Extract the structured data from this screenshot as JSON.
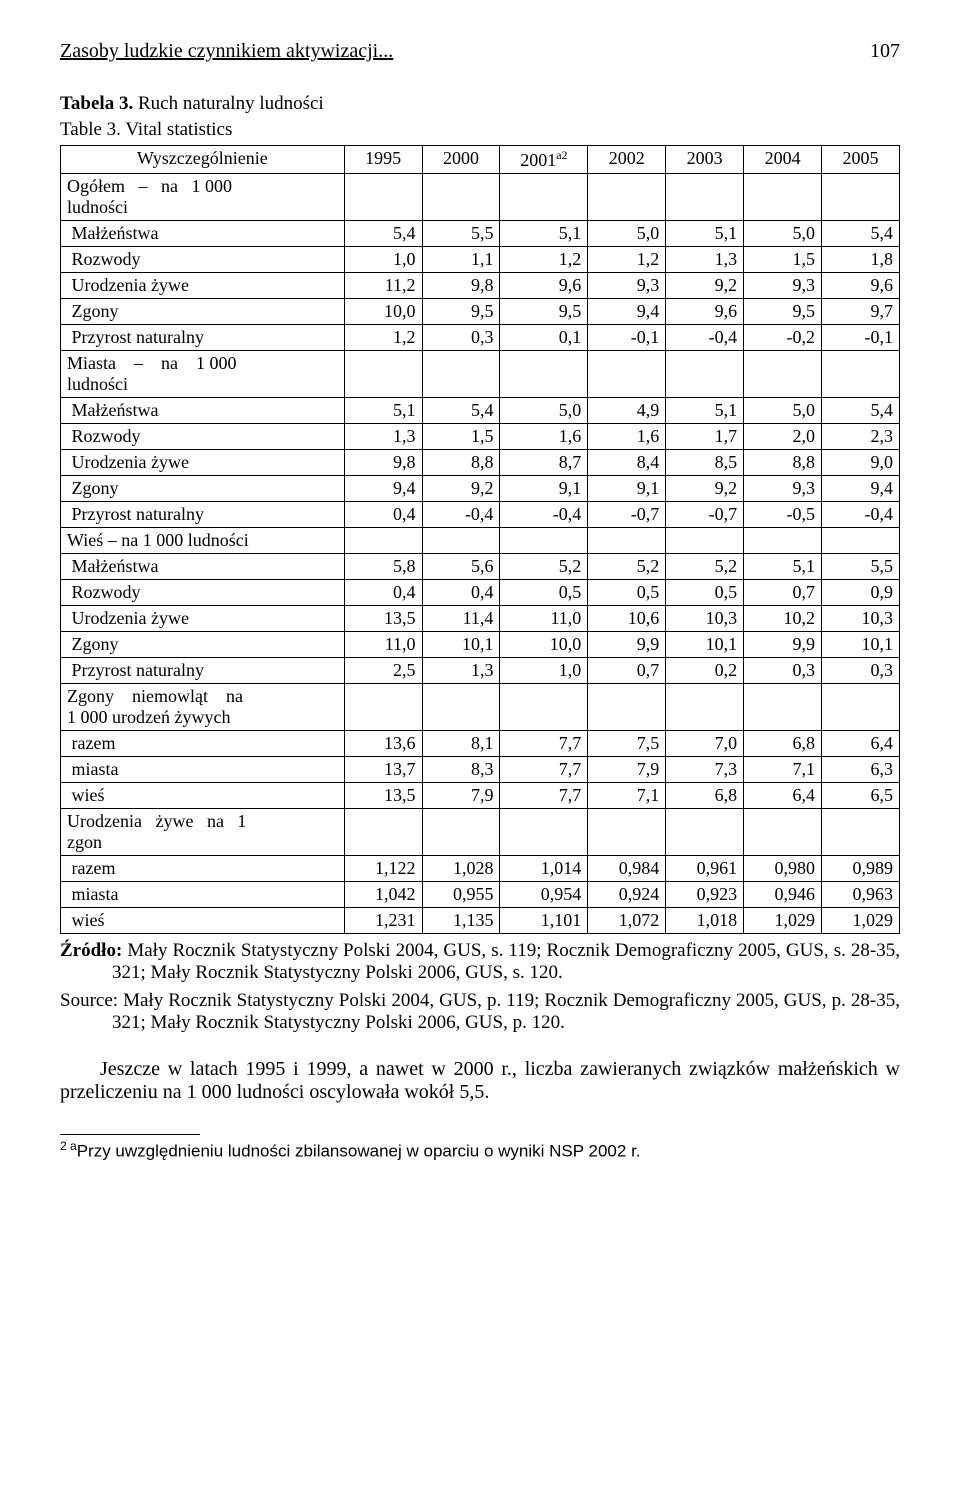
{
  "header": {
    "title": "Zasoby ludzkie czynnikiem aktywizacji...",
    "page": "107"
  },
  "caption": {
    "line1_bold": "Tabela 3.",
    "line1_rest": " Ruch naturalny ludności",
    "line2": "Table 3. Vital statistics"
  },
  "table": {
    "col_header": "Wyszczególnienie",
    "years": [
      "1995",
      "2000",
      "2001",
      "2002",
      "2003",
      "2004",
      "2005"
    ],
    "year_sup": "a2",
    "rows": [
      {
        "label": "Ogółem   –   na   1 000\nludności",
        "vals": [
          "",
          "",
          "",
          "",
          "",
          "",
          ""
        ]
      },
      {
        "label": " Małżeństwa",
        "vals": [
          "5,4",
          "5,5",
          "5,1",
          "5,0",
          "5,1",
          "5,0",
          "5,4"
        ]
      },
      {
        "label": " Rozwody",
        "vals": [
          "1,0",
          "1,1",
          "1,2",
          "1,2",
          "1,3",
          "1,5",
          "1,8"
        ]
      },
      {
        "label": " Urodzenia żywe",
        "vals": [
          "11,2",
          "9,8",
          "9,6",
          "9,3",
          "9,2",
          "9,3",
          "9,6"
        ]
      },
      {
        "label": " Zgony",
        "vals": [
          "10,0",
          "9,5",
          "9,5",
          "9,4",
          "9,6",
          "9,5",
          "9,7"
        ]
      },
      {
        "label": " Przyrost naturalny",
        "vals": [
          "1,2",
          "0,3",
          "0,1",
          "-0,1",
          "-0,4",
          "-0,2",
          "-0,1"
        ]
      },
      {
        "label": "Miasta    –    na    1 000\nludności",
        "vals": [
          "",
          "",
          "",
          "",
          "",
          "",
          ""
        ]
      },
      {
        "label": " Małżeństwa",
        "vals": [
          "5,1",
          "5,4",
          "5,0",
          "4,9",
          "5,1",
          "5,0",
          "5,4"
        ]
      },
      {
        "label": " Rozwody",
        "vals": [
          "1,3",
          "1,5",
          "1,6",
          "1,6",
          "1,7",
          "2,0",
          "2,3"
        ]
      },
      {
        "label": " Urodzenia żywe",
        "vals": [
          "9,8",
          "8,8",
          "8,7",
          "8,4",
          "8,5",
          "8,8",
          "9,0"
        ]
      },
      {
        "label": " Zgony",
        "vals": [
          "9,4",
          "9,2",
          "9,1",
          "9,1",
          "9,2",
          "9,3",
          "9,4"
        ]
      },
      {
        "label": " Przyrost naturalny",
        "vals": [
          "0,4",
          "-0,4",
          "-0,4",
          "-0,7",
          "-0,7",
          "-0,5",
          "-0,4"
        ]
      },
      {
        "label": "Wieś – na 1 000 ludności",
        "vals": [
          "",
          "",
          "",
          "",
          "",
          "",
          ""
        ]
      },
      {
        "label": " Małżeństwa",
        "vals": [
          "5,8",
          "5,6",
          "5,2",
          "5,2",
          "5,2",
          "5,1",
          "5,5"
        ]
      },
      {
        "label": " Rozwody",
        "vals": [
          "0,4",
          "0,4",
          "0,5",
          "0,5",
          "0,5",
          "0,7",
          "0,9"
        ]
      },
      {
        "label": " Urodzenia żywe",
        "vals": [
          "13,5",
          "11,4",
          "11,0",
          "10,6",
          "10,3",
          "10,2",
          "10,3"
        ]
      },
      {
        "label": " Zgony",
        "vals": [
          "11,0",
          "10,1",
          "10,0",
          "9,9",
          "10,1",
          "9,9",
          "10,1"
        ]
      },
      {
        "label": " Przyrost naturalny",
        "vals": [
          "2,5",
          "1,3",
          "1,0",
          "0,7",
          "0,2",
          "0,3",
          "0,3"
        ]
      },
      {
        "label": "Zgony    niemowląt    na\n1 000 urodzeń żywych",
        "vals": [
          "",
          "",
          "",
          "",
          "",
          "",
          ""
        ]
      },
      {
        "label": " razem",
        "vals": [
          "13,6",
          "8,1",
          "7,7",
          "7,5",
          "7,0",
          "6,8",
          "6,4"
        ]
      },
      {
        "label": " miasta",
        "vals": [
          "13,7",
          "8,3",
          "7,7",
          "7,9",
          "7,3",
          "7,1",
          "6,3"
        ]
      },
      {
        "label": " wieś",
        "vals": [
          "13,5",
          "7,9",
          "7,7",
          "7,1",
          "6,8",
          "6,4",
          "6,5"
        ]
      },
      {
        "label": "Urodzenia   żywe   na   1\nzgon",
        "vals": [
          "",
          "",
          "",
          "",
          "",
          "",
          ""
        ]
      },
      {
        "label": " razem",
        "vals": [
          "1,122",
          "1,028",
          "1,014",
          "0,984",
          "0,961",
          "0,980",
          "0,989"
        ]
      },
      {
        "label": " miasta",
        "vals": [
          "1,042",
          "0,955",
          "0,954",
          "0,924",
          "0,923",
          "0,946",
          "0,963"
        ]
      },
      {
        "label": " wieś",
        "vals": [
          "1,231",
          "1,135",
          "1,101",
          "1,072",
          "1,018",
          "1,029",
          "1,029"
        ]
      }
    ]
  },
  "source1_bold": "Źródło:",
  "source1_rest": " Mały Rocznik Statystyczny Polski 2004, GUS, s. 119; Rocznik Demograficzny 2005, GUS, s. 28-35, 321; Mały Rocznik Statystyczny Polski 2006, GUS, s. 120.",
  "source2": "Source: Mały Rocznik Statystyczny Polski 2004, GUS, p. 119; Rocznik Demograficzny 2005, GUS, p. 28-35, 321; Mały Rocznik Statystyczny Polski 2006, GUS, p. 120.",
  "paragraph": "Jeszcze w latach 1995 i 1999, a nawet w 2000 r., liczba zawieranych związków małżeńskich w przeliczeniu na 1 000 ludności oscylowała wokół 5,5.",
  "footnote_sup": "2 a",
  "footnote": "Przy uwzględnieniu ludności zbilansowanej w oparciu o wyniki NSP 2002 r."
}
